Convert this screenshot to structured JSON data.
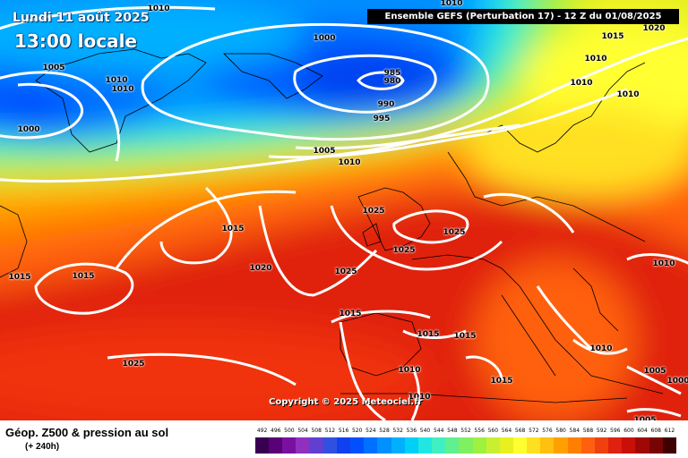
{
  "map": {
    "date_label": "Lundi 11 août 2025",
    "time_label": "13:00 locale",
    "header": "Ensemble GEFS  (Perturbation 17)  -  12 Z du 01/08/2025",
    "copyright": "Copyright © 2025 Meteociel.fr",
    "isobar_labels": [
      "1010",
      "1010",
      "1015",
      "1020",
      "1000",
      "1005",
      "1010",
      "1010",
      "1000",
      "985",
      "980",
      "990",
      "995",
      "1010",
      "1010",
      "1010",
      "1005",
      "1010",
      "1025",
      "1015",
      "1025",
      "1025",
      "1015",
      "1020",
      "1015",
      "1025",
      "1015",
      "1015",
      "1015",
      "1025",
      "1010",
      "1010",
      "1015",
      "1010",
      "1010",
      "1005",
      "1000",
      "1005"
    ]
  },
  "legend": {
    "title": "Géop. Z500 & pression au sol",
    "subtitle": "(+ 240h)",
    "scale": [
      "492",
      "496",
      "500",
      "504",
      "508",
      "512",
      "516",
      "520",
      "524",
      "528",
      "532",
      "536",
      "540",
      "544",
      "548",
      "552",
      "556",
      "560",
      "564",
      "568",
      "572",
      "576",
      "580",
      "584",
      "588",
      "592",
      "596",
      "600",
      "604",
      "608",
      "612"
    ],
    "colors": [
      "#3a0050",
      "#5a0078",
      "#7a10a0",
      "#9030c0",
      "#6040d0",
      "#3050e0",
      "#1040f0",
      "#0050ff",
      "#0070ff",
      "#0090ff",
      "#00b0ff",
      "#00d0f8",
      "#20e8e0",
      "#40f0c0",
      "#60f090",
      "#80f060",
      "#a0f040",
      "#c8f030",
      "#e8f020",
      "#ffff30",
      "#ffe020",
      "#ffc010",
      "#ffa000",
      "#ff8000",
      "#ff6010",
      "#f04010",
      "#e02010",
      "#c81008",
      "#a00808",
      "#780404",
      "#400000"
    ]
  }
}
